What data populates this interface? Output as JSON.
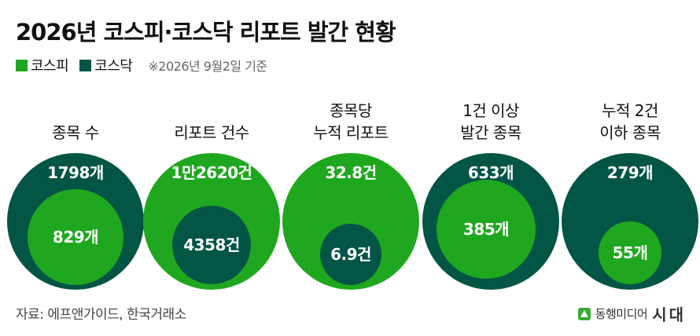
{
  "title": "2026년 코스피·코스닥 리포트 발간 현황",
  "legend": {
    "items": [
      {
        "label": "코스피",
        "color": "#1fa81f"
      },
      {
        "label": "코스닥",
        "color": "#035545"
      }
    ],
    "note": "※2026년 9월2일 기준"
  },
  "colors": {
    "kospi": "#1fa81f",
    "kosdaq": "#035545"
  },
  "chart_data": [
    {
      "type": "bubble",
      "title_lines": [
        "종목 수"
      ],
      "outer": {
        "market": "코스닥",
        "label": "1798개",
        "value": 1798
      },
      "inner": {
        "market": "코스피",
        "label": "829개",
        "value": 829
      }
    },
    {
      "type": "bubble",
      "title_lines": [
        "리포트 건수"
      ],
      "outer": {
        "market": "코스피",
        "label": "1만2620건",
        "value": 12620
      },
      "inner": {
        "market": "코스닥",
        "label": "4358건",
        "value": 4358
      }
    },
    {
      "type": "bubble",
      "title_lines": [
        "종목당",
        "누적 리포트"
      ],
      "outer": {
        "market": "코스피",
        "label": "32.8건",
        "value": 32.8
      },
      "inner": {
        "market": "코스닥",
        "label": "6.9건",
        "value": 6.9
      }
    },
    {
      "type": "bubble",
      "title_lines": [
        "1건 이상",
        "발간 종목"
      ],
      "outer": {
        "market": "코스닥",
        "label": "633개",
        "value": 633
      },
      "inner": {
        "market": "코스피",
        "label": "385개",
        "value": 385
      }
    },
    {
      "type": "bubble",
      "title_lines": [
        "누적 2건",
        "이하 종목"
      ],
      "outer": {
        "market": "코스닥",
        "label": "279개",
        "value": 279
      },
      "inner": {
        "market": "코스피",
        "label": "55개",
        "value": 55
      }
    }
  ],
  "source": "자료: 에프앤가이드, 한국거래소",
  "brand": {
    "name": "동행미디어",
    "suffix": "시대"
  }
}
